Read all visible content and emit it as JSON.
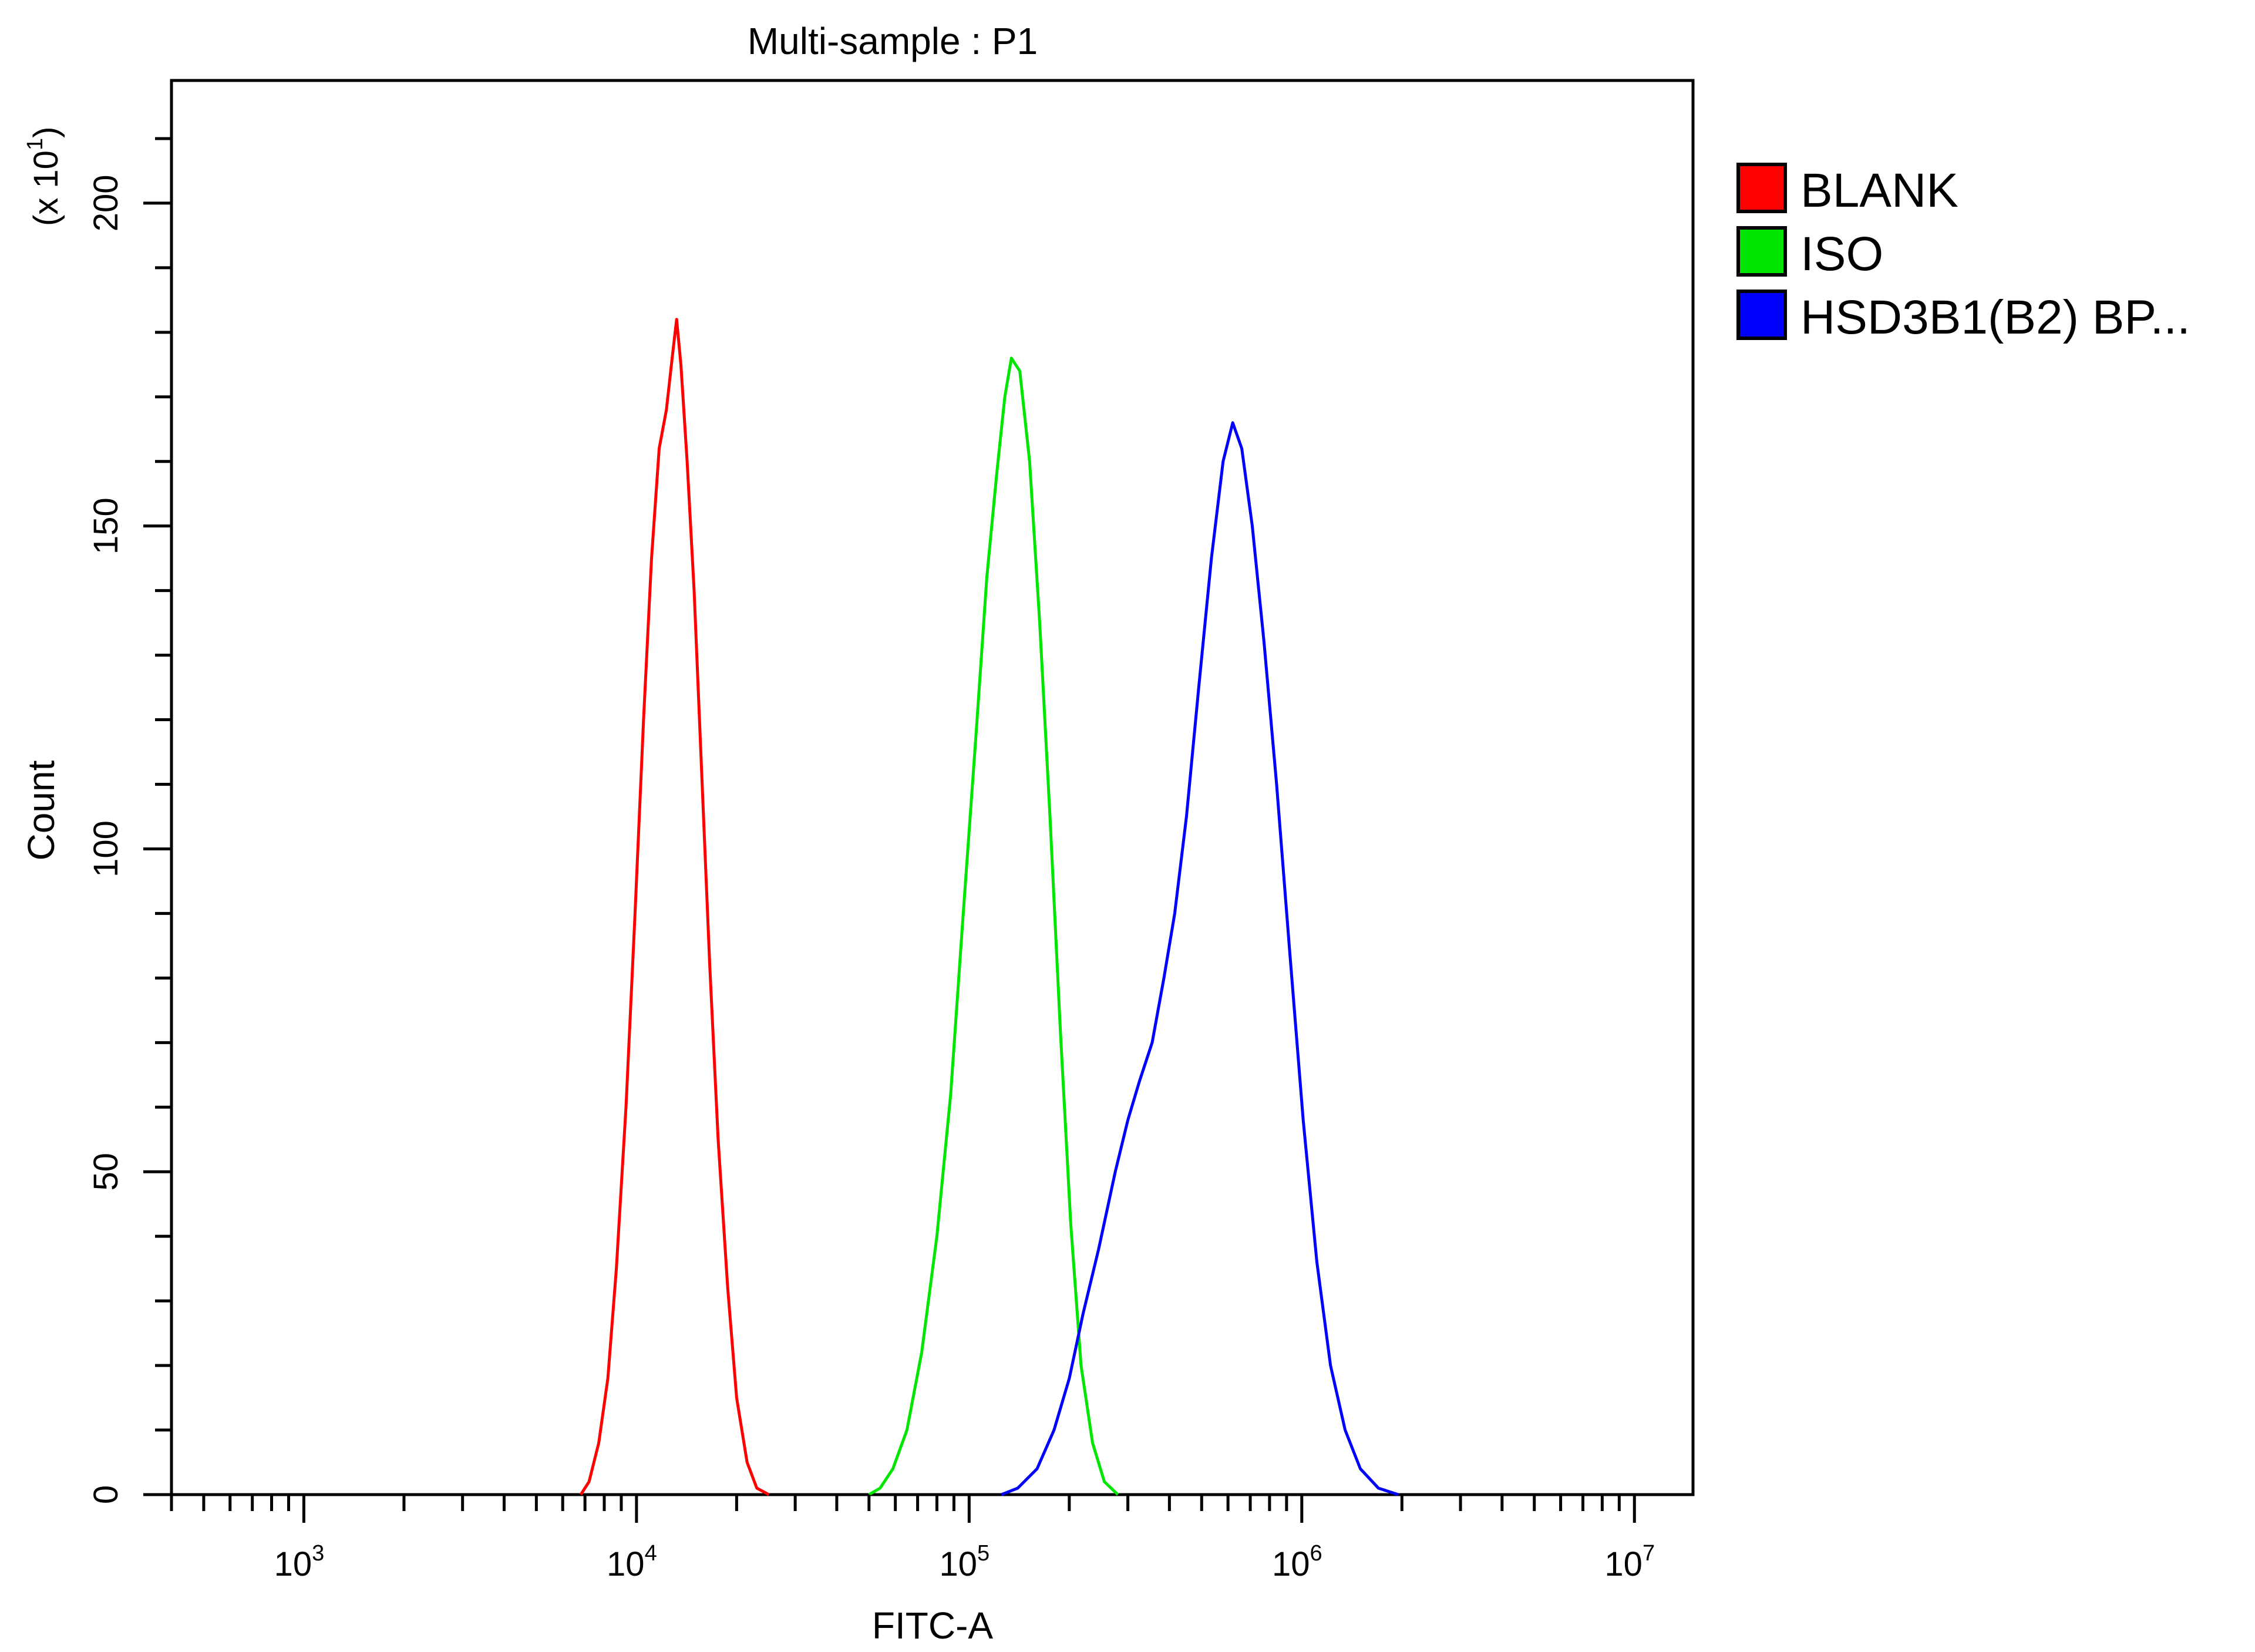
{
  "chart_data": {
    "type": "line",
    "title": "Multi-sample : P1",
    "xlabel": "FITC-A",
    "ylabel": "Count",
    "y_multiplier": "(x 10",
    "y_multiplier_exp": "1",
    "y_multiplier_close": ")",
    "x_scale": "log",
    "xlim": [
      400,
      15000000
    ],
    "ylim": [
      0,
      219
    ],
    "x_ticks": [
      {
        "base": "10",
        "exp": "3",
        "value": 1000
      },
      {
        "base": "10",
        "exp": "4",
        "value": 10000
      },
      {
        "base": "10",
        "exp": "5",
        "value": 100000
      },
      {
        "base": "10",
        "exp": "6",
        "value": 1000000
      },
      {
        "base": "10",
        "exp": "7",
        "value": 10000000
      }
    ],
    "y_ticks": [
      {
        "label": "0",
        "value": 0
      },
      {
        "label": "50",
        "value": 50
      },
      {
        "label": "100",
        "value": 100
      },
      {
        "label": "150",
        "value": 150
      },
      {
        "label": "200",
        "value": 200
      }
    ],
    "legend_position": "right",
    "grid": false,
    "series": [
      {
        "name": "BLANK",
        "color": "#ff0000",
        "points": [
          [
            6800,
            0
          ],
          [
            7200,
            2
          ],
          [
            7700,
            8
          ],
          [
            8200,
            18
          ],
          [
            8700,
            35
          ],
          [
            9300,
            60
          ],
          [
            9900,
            90
          ],
          [
            10500,
            120
          ],
          [
            11100,
            145
          ],
          [
            11700,
            162
          ],
          [
            12300,
            168
          ],
          [
            12800,
            176
          ],
          [
            13200,
            182
          ],
          [
            13600,
            175
          ],
          [
            14200,
            160
          ],
          [
            14900,
            140
          ],
          [
            15700,
            112
          ],
          [
            16600,
            82
          ],
          [
            17600,
            55
          ],
          [
            18800,
            32
          ],
          [
            20000,
            15
          ],
          [
            21500,
            5
          ],
          [
            23000,
            1
          ],
          [
            25000,
            0
          ]
        ]
      },
      {
        "name": "ISO",
        "color": "#00e600",
        "points": [
          [
            50000,
            0
          ],
          [
            54000,
            1
          ],
          [
            59000,
            4
          ],
          [
            65000,
            10
          ],
          [
            72000,
            22
          ],
          [
            80000,
            40
          ],
          [
            88000,
            62
          ],
          [
            96000,
            90
          ],
          [
            105000,
            118
          ],
          [
            113000,
            142
          ],
          [
            121000,
            158
          ],
          [
            128000,
            170
          ],
          [
            134000,
            176
          ],
          [
            142000,
            174
          ],
          [
            152000,
            160
          ],
          [
            163000,
            135
          ],
          [
            175000,
            105
          ],
          [
            188000,
            72
          ],
          [
            202000,
            42
          ],
          [
            217000,
            20
          ],
          [
            235000,
            8
          ],
          [
            255000,
            2
          ],
          [
            280000,
            0
          ]
        ]
      },
      {
        "name": "HSD3B1(B2) BP...",
        "color": "#0000ff",
        "points": [
          [
            125000,
            0
          ],
          [
            140000,
            1
          ],
          [
            160000,
            4
          ],
          [
            180000,
            10
          ],
          [
            200000,
            18
          ],
          [
            220000,
            28
          ],
          [
            245000,
            38
          ],
          [
            275000,
            50
          ],
          [
            300000,
            58
          ],
          [
            325000,
            64
          ],
          [
            355000,
            70
          ],
          [
            385000,
            80
          ],
          [
            415000,
            90
          ],
          [
            450000,
            105
          ],
          [
            490000,
            125
          ],
          [
            535000,
            145
          ],
          [
            580000,
            160
          ],
          [
            620000,
            166
          ],
          [
            660000,
            162
          ],
          [
            710000,
            150
          ],
          [
            770000,
            132
          ],
          [
            840000,
            110
          ],
          [
            920000,
            84
          ],
          [
            1010000,
            58
          ],
          [
            1110000,
            36
          ],
          [
            1220000,
            20
          ],
          [
            1350000,
            10
          ],
          [
            1500000,
            4
          ],
          [
            1700000,
            1
          ],
          [
            1950000,
            0
          ]
        ]
      }
    ]
  }
}
